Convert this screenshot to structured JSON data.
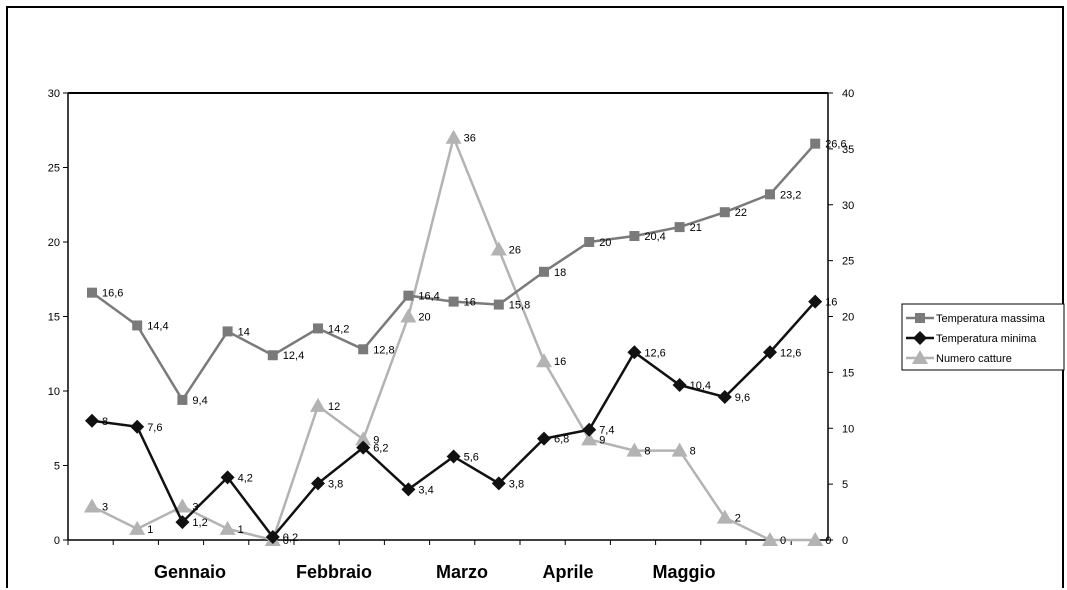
{
  "chart_data": {
    "type": "line",
    "title": "",
    "x_category_labels": [
      "Gennaio",
      "Febbraio",
      "Marzo",
      "Aprile",
      "Maggio"
    ],
    "y_left": {
      "ylim": [
        0,
        30
      ],
      "ticks": [
        "0",
        "5",
        "10",
        "15",
        "20",
        "25",
        "30"
      ]
    },
    "y_right": {
      "ylim": [
        0,
        40
      ],
      "ticks": [
        "0",
        "5",
        "10",
        "15",
        "20",
        "25",
        "30",
        "35",
        "40"
      ]
    },
    "grid": false,
    "legend_position": "right",
    "series": [
      {
        "name": "Temperatura massima",
        "axis": "left",
        "color": "#7a7a7a",
        "marker": "square",
        "values": [
          16.6,
          14.4,
          9.4,
          14,
          12.4,
          14.2,
          12.8,
          16.4,
          16,
          15.8,
          18,
          20,
          20.4,
          21,
          22,
          23.2,
          26.6
        ],
        "labels": [
          "16,6",
          "14,4",
          "9,4",
          "14",
          "12,4",
          "14,2",
          "12,8",
          "16,4",
          "16",
          "15,8",
          "18",
          "20",
          "20,4",
          "21",
          "22",
          "23,2",
          "26,6"
        ]
      },
      {
        "name": "Temperatura minima",
        "axis": "left",
        "color": "#111111",
        "marker": "diamond",
        "values": [
          8,
          7.6,
          1.2,
          4.2,
          0.2,
          3.8,
          6.2,
          3.4,
          5.6,
          3.8,
          6.8,
          7.4,
          12.6,
          10.4,
          9.6,
          12.6,
          16
        ],
        "labels": [
          "8",
          "7,6",
          "1,2",
          "4,2",
          "0,2",
          "3,8",
          "6,2",
          "3,4",
          "5,6",
          "3,8",
          "6,8",
          "7,4",
          "12,6",
          "10,4",
          "9,6",
          "12,6",
          "16"
        ]
      },
      {
        "name": "Numero catture",
        "axis": "right",
        "color": "#b3b3b3",
        "marker": "triangle",
        "values": [
          3,
          1,
          3,
          1,
          0,
          12,
          9,
          20,
          36,
          26,
          16,
          9,
          8,
          8,
          2,
          0,
          0
        ],
        "labels": [
          "3",
          "1",
          "3",
          "1",
          "0",
          "12",
          "9",
          "20",
          "36",
          "26",
          "16",
          "9",
          "8",
          "8",
          "2",
          "0",
          "0"
        ]
      }
    ]
  }
}
